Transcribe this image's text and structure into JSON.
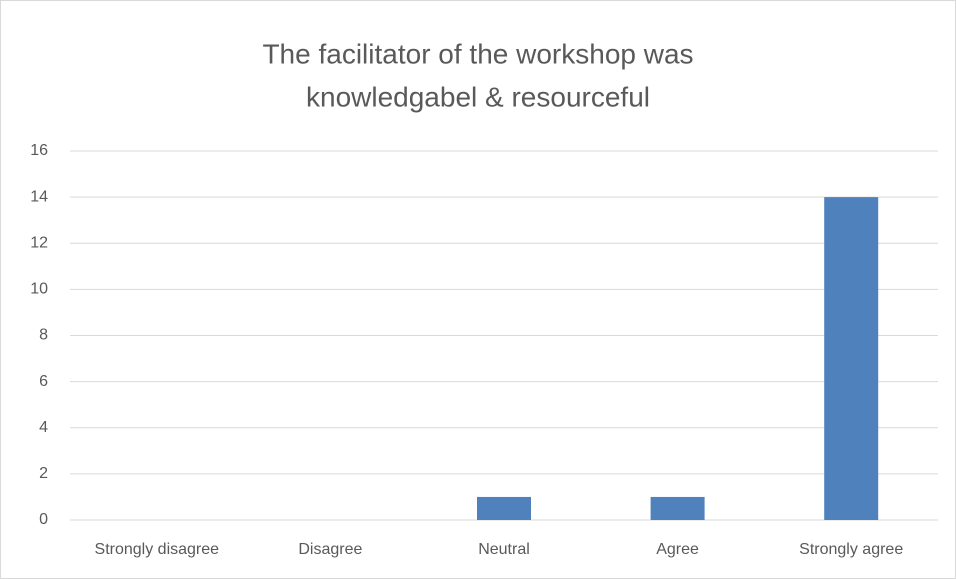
{
  "chart_data": {
    "type": "bar",
    "title": [
      "The facilitator of the workshop was",
      "knowledgabel & resourceful"
    ],
    "categories": [
      "Strongly disagree",
      "Disagree",
      "Neutral",
      "Agree",
      "Strongly agree"
    ],
    "values": [
      0,
      0,
      1,
      1,
      14
    ],
    "color": "#4f81bd",
    "ylim": [
      0,
      16
    ],
    "yticks": [
      0,
      2,
      4,
      6,
      8,
      10,
      12,
      14,
      16
    ],
    "grid": true
  }
}
